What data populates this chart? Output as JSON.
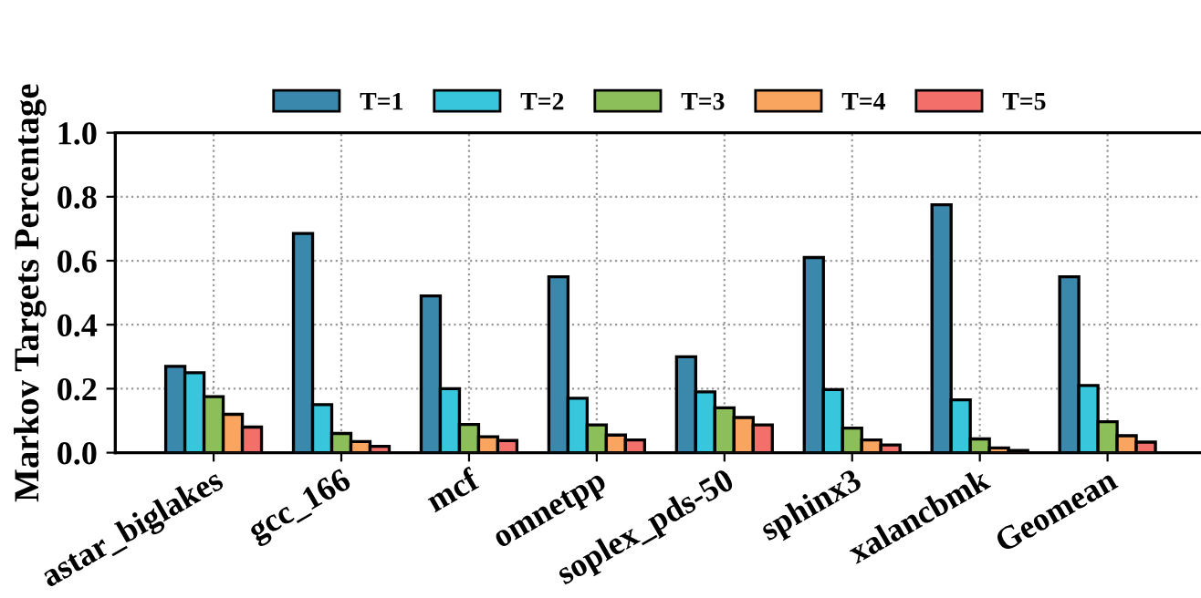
{
  "chart_data": {
    "type": "bar",
    "ylabel": "Markov Targets Percentage",
    "categories": [
      "astar_biglakes",
      "gcc_166",
      "mcf",
      "omnetpp",
      "soplex_pds-50",
      "sphinx3",
      "xalancbmk",
      "Geomean"
    ],
    "series": [
      {
        "name": "T=1",
        "color": "#3a89ad",
        "values": [
          0.27,
          0.685,
          0.49,
          0.55,
          0.3,
          0.61,
          0.775,
          0.55
        ]
      },
      {
        "name": "T=2",
        "color": "#38c6dc",
        "values": [
          0.25,
          0.15,
          0.2,
          0.17,
          0.19,
          0.197,
          0.165,
          0.21
        ]
      },
      {
        "name": "T=3",
        "color": "#8cbf5a",
        "values": [
          0.175,
          0.06,
          0.088,
          0.087,
          0.14,
          0.077,
          0.043,
          0.097
        ]
      },
      {
        "name": "T=4",
        "color": "#f9a45f",
        "values": [
          0.12,
          0.035,
          0.05,
          0.055,
          0.11,
          0.04,
          0.015,
          0.053
        ]
      },
      {
        "name": "T=5",
        "color": "#f3706a",
        "values": [
          0.08,
          0.02,
          0.038,
          0.04,
          0.087,
          0.024,
          0.007,
          0.033
        ]
      }
    ],
    "ylim": [
      0,
      1.0
    ],
    "yticks": [
      {
        "value": 0,
        "label": "0.0"
      },
      0.2,
      0.4,
      0.6,
      0.8,
      {
        "value": 1.0,
        "label": "1.0"
      }
    ],
    "grid": true,
    "legend": "top"
  }
}
